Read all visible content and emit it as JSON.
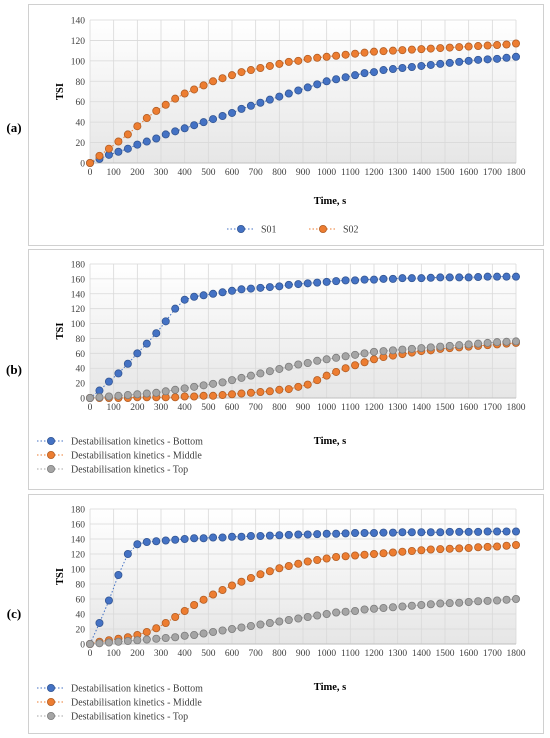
{
  "panels": [
    {
      "label": "(a)",
      "chart_data": {
        "type": "scatter",
        "title": "",
        "xlabel": "Time, s",
        "ylabel": "TSI",
        "xlim": [
          0,
          1800
        ],
        "ylim": [
          0,
          140
        ],
        "xticks": [
          0,
          100,
          200,
          300,
          400,
          500,
          600,
          700,
          800,
          900,
          1000,
          1100,
          1200,
          1300,
          1400,
          1500,
          1600,
          1700,
          1800
        ],
        "yticks": [
          0,
          20,
          40,
          60,
          80,
          100,
          120,
          140
        ],
        "grid": true,
        "legend_position": "bottom-center",
        "series": [
          {
            "name": "S01",
            "color": "#4472C4",
            "x": [
              0,
              40,
              80,
              120,
              160,
              200,
              240,
              280,
              320,
              360,
              400,
              440,
              480,
              520,
              560,
              600,
              640,
              680,
              720,
              760,
              800,
              840,
              880,
              920,
              960,
              1000,
              1040,
              1080,
              1120,
              1160,
              1200,
              1240,
              1280,
              1320,
              1360,
              1400,
              1440,
              1480,
              1520,
              1560,
              1600,
              1640,
              1680,
              1720,
              1760,
              1800
            ],
            "y": [
              0,
              4,
              8,
              11,
              14,
              18,
              21,
              24,
              28,
              31,
              34,
              37,
              40,
              43,
              46,
              49,
              53,
              56,
              59,
              62,
              65,
              68,
              71,
              74,
              77,
              80,
              82,
              84,
              86,
              88,
              89,
              91,
              92,
              93,
              94,
              95,
              96,
              97,
              98,
              99,
              100,
              101,
              101.5,
              102,
              103,
              104
            ]
          },
          {
            "name": "S02",
            "color": "#ED7D31",
            "x": [
              0,
              40,
              80,
              120,
              160,
              200,
              240,
              280,
              320,
              360,
              400,
              440,
              480,
              520,
              560,
              600,
              640,
              680,
              720,
              760,
              800,
              840,
              880,
              920,
              960,
              1000,
              1040,
              1080,
              1120,
              1160,
              1200,
              1240,
              1280,
              1320,
              1360,
              1400,
              1440,
              1480,
              1520,
              1560,
              1600,
              1640,
              1680,
              1720,
              1760,
              1800
            ],
            "y": [
              0,
              7,
              14,
              21,
              28,
              36,
              44,
              51,
              57,
              63,
              68,
              72,
              76,
              80,
              83,
              86,
              89,
              91,
              93,
              95,
              97,
              99,
              100,
              102,
              103,
              104,
              105,
              106,
              107,
              108,
              109,
              109.5,
              110,
              110.5,
              111,
              111.5,
              112,
              112.5,
              113,
              113.5,
              114,
              114.5,
              115,
              115.5,
              116,
              117
            ]
          }
        ]
      }
    },
    {
      "label": "(b)",
      "chart_data": {
        "type": "scatter",
        "title": "",
        "xlabel": "Time, s",
        "ylabel": "TSI",
        "xlim": [
          0,
          1800
        ],
        "ylim": [
          0,
          180
        ],
        "xticks": [
          0,
          100,
          200,
          300,
          400,
          500,
          600,
          700,
          800,
          900,
          1000,
          1100,
          1200,
          1300,
          1400,
          1500,
          1600,
          1700,
          1800
        ],
        "yticks": [
          0,
          20,
          40,
          60,
          80,
          100,
          120,
          140,
          160,
          180
        ],
        "grid": true,
        "legend_position": "bottom-left",
        "series": [
          {
            "name": "Destabilisation kinetics - Bottom",
            "color": "#4472C4",
            "x": [
              0,
              40,
              80,
              120,
              160,
              200,
              240,
              280,
              320,
              360,
              400,
              440,
              480,
              520,
              560,
              600,
              640,
              680,
              720,
              760,
              800,
              840,
              880,
              920,
              960,
              1000,
              1040,
              1080,
              1120,
              1160,
              1200,
              1240,
              1280,
              1320,
              1360,
              1400,
              1440,
              1480,
              1520,
              1560,
              1600,
              1640,
              1680,
              1720,
              1760,
              1800
            ],
            "y": [
              0,
              10,
              22,
              33,
              46,
              60,
              73,
              87,
              103,
              120,
              132,
              136,
              138,
              140,
              142,
              144,
              146,
              147,
              148,
              149,
              150,
              152,
              153,
              154,
              155,
              156,
              157,
              158,
              158,
              159,
              159,
              160,
              160,
              161,
              161,
              161,
              161.5,
              162,
              162,
              162,
              162,
              162.5,
              163,
              163,
              163,
              163
            ]
          },
          {
            "name": "Destabilisation kinetics - Middle",
            "color": "#ED7D31",
            "x": [
              0,
              40,
              80,
              120,
              160,
              200,
              240,
              280,
              320,
              360,
              400,
              440,
              480,
              520,
              560,
              600,
              640,
              680,
              720,
              760,
              800,
              840,
              880,
              920,
              960,
              1000,
              1040,
              1080,
              1120,
              1160,
              1200,
              1240,
              1280,
              1320,
              1360,
              1400,
              1440,
              1480,
              1520,
              1560,
              1600,
              1640,
              1680,
              1720,
              1760,
              1800
            ],
            "y": [
              0,
              0,
              0,
              0,
              0,
              1,
              1,
              1,
              1,
              1,
              2,
              2,
              3,
              3,
              4,
              5,
              6,
              7,
              8,
              9,
              11,
              12,
              15,
              18,
              24,
              30,
              35,
              40,
              44,
              48,
              52,
              55,
              57,
              59,
              61,
              63,
              64,
              66,
              67,
              68,
              69,
              70,
              71,
              72,
              73,
              74
            ]
          },
          {
            "name": "Destabilisation kinetics - Top",
            "color": "#A5A5A5",
            "x": [
              0,
              40,
              80,
              120,
              160,
              200,
              240,
              280,
              320,
              360,
              400,
              440,
              480,
              520,
              560,
              600,
              640,
              680,
              720,
              760,
              800,
              840,
              880,
              920,
              960,
              1000,
              1040,
              1080,
              1120,
              1160,
              1200,
              1240,
              1280,
              1320,
              1360,
              1400,
              1440,
              1480,
              1520,
              1560,
              1600,
              1640,
              1680,
              1720,
              1760,
              1800
            ],
            "y": [
              0,
              1,
              2,
              3,
              4,
              5,
              6,
              7,
              9,
              11,
              13,
              15,
              17,
              19,
              21,
              24,
              27,
              30,
              33,
              36,
              39,
              42,
              45,
              47,
              50,
              52,
              54,
              56,
              58,
              60,
              62,
              63,
              64,
              65,
              66,
              67,
              68,
              69,
              70,
              71,
              72,
              73,
              74,
              75,
              75.5,
              76
            ]
          }
        ]
      }
    },
    {
      "label": "(c)",
      "chart_data": {
        "type": "scatter",
        "title": "",
        "xlabel": "Time, s",
        "ylabel": "TSI",
        "xlim": [
          0,
          1800
        ],
        "ylim": [
          0,
          180
        ],
        "xticks": [
          0,
          100,
          200,
          300,
          400,
          500,
          600,
          700,
          800,
          900,
          1000,
          1100,
          1200,
          1300,
          1400,
          1500,
          1600,
          1700,
          1800
        ],
        "yticks": [
          0,
          20,
          40,
          60,
          80,
          100,
          120,
          140,
          160,
          180
        ],
        "grid": true,
        "legend_position": "bottom-left",
        "series": [
          {
            "name": "Destabilisation kinetics - Bottom",
            "color": "#4472C4",
            "x": [
              0,
              40,
              80,
              120,
              160,
              200,
              240,
              280,
              320,
              360,
              400,
              440,
              480,
              520,
              560,
              600,
              640,
              680,
              720,
              760,
              800,
              840,
              880,
              920,
              960,
              1000,
              1040,
              1080,
              1120,
              1160,
              1200,
              1240,
              1280,
              1320,
              1360,
              1400,
              1440,
              1480,
              1520,
              1560,
              1600,
              1640,
              1680,
              1720,
              1760,
              1800
            ],
            "y": [
              0,
              28,
              58,
              92,
              120,
              133,
              136,
              137,
              138,
              139,
              140,
              141,
              141,
              142,
              142,
              143,
              143,
              144,
              144,
              144.5,
              145,
              145.5,
              146,
              146,
              146.5,
              147,
              147,
              147.5,
              148,
              148,
              148,
              148.5,
              148.5,
              149,
              149,
              149,
              149,
              149,
              149.5,
              149.5,
              149.5,
              149.5,
              150,
              150,
              150,
              150
            ]
          },
          {
            "name": "Destabilisation kinetics - Middle",
            "color": "#ED7D31",
            "x": [
              0,
              40,
              80,
              120,
              160,
              200,
              240,
              280,
              320,
              360,
              400,
              440,
              480,
              520,
              560,
              600,
              640,
              680,
              720,
              760,
              800,
              840,
              880,
              920,
              960,
              1000,
              1040,
              1080,
              1120,
              1160,
              1200,
              1240,
              1280,
              1320,
              1360,
              1400,
              1440,
              1480,
              1520,
              1560,
              1600,
              1640,
              1680,
              1720,
              1760,
              1800
            ],
            "y": [
              0,
              3,
              5,
              7,
              9,
              12,
              16,
              21,
              28,
              36,
              44,
              52,
              59,
              66,
              72,
              78,
              83,
              88,
              93,
              97,
              101,
              104,
              107,
              110,
              112,
              114,
              116,
              117,
              118,
              119,
              120,
              121,
              122,
              123,
              124,
              125,
              126,
              126.5,
              127,
              127.5,
              128,
              129,
              129.5,
              130,
              131,
              132
            ]
          },
          {
            "name": "Destabilisation kinetics - Top",
            "color": "#A5A5A5",
            "x": [
              0,
              40,
              80,
              120,
              160,
              200,
              240,
              280,
              320,
              360,
              400,
              440,
              480,
              520,
              560,
              600,
              640,
              680,
              720,
              760,
              800,
              840,
              880,
              920,
              960,
              1000,
              1040,
              1080,
              1120,
              1160,
              1200,
              1240,
              1280,
              1320,
              1360,
              1400,
              1440,
              1480,
              1520,
              1560,
              1600,
              1640,
              1680,
              1720,
              1760,
              1800
            ],
            "y": [
              0,
              1,
              2,
              3,
              4,
              5,
              6,
              7,
              8,
              9,
              11,
              12,
              14,
              16,
              18,
              20,
              22,
              24,
              26,
              28,
              30,
              32,
              34,
              36,
              38,
              40,
              42,
              43,
              44,
              46,
              47,
              48,
              49,
              50,
              51,
              52,
              53,
              54,
              54.5,
              55,
              56,
              57,
              57.5,
              58,
              59,
              60
            ]
          }
        ]
      }
    }
  ]
}
